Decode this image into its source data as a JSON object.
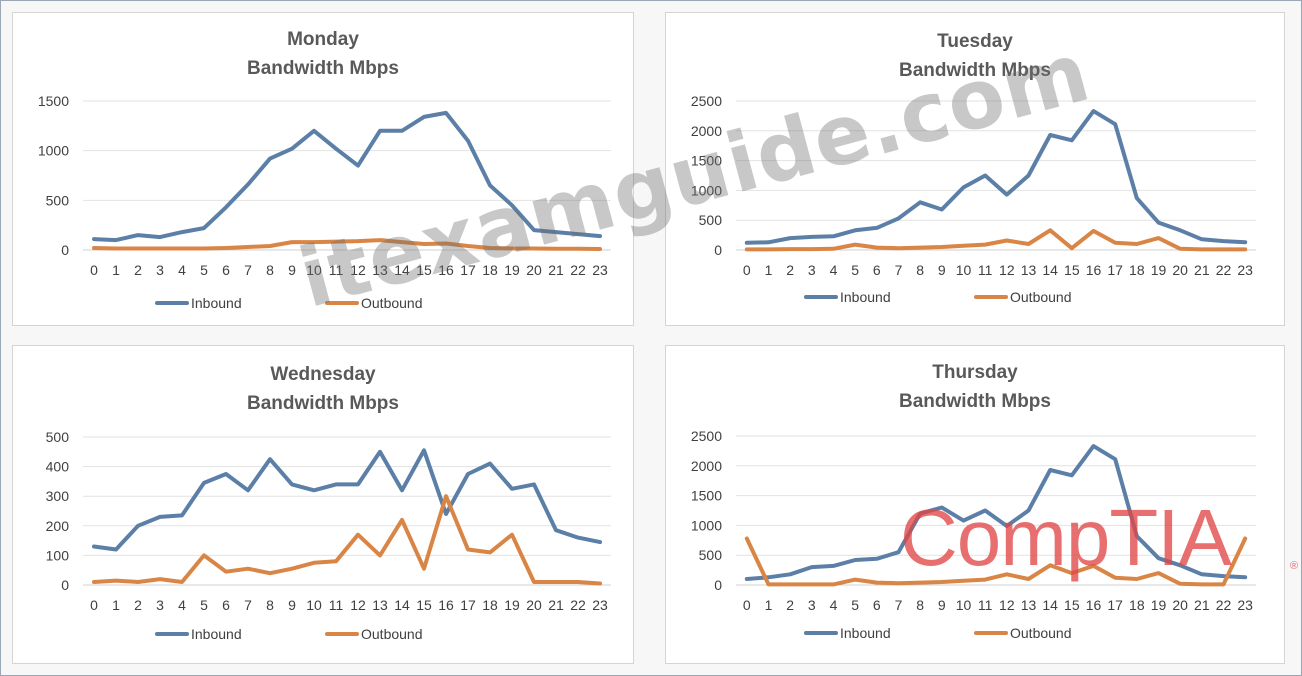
{
  "watermark_text": "itexamguide.com",
  "logo_text": "CompTIA",
  "logo_mark": "®",
  "chart_data": [
    {
      "type": "line",
      "title": [
        "Monday",
        "Bandwidth Mbps"
      ],
      "x": [
        0,
        1,
        2,
        3,
        4,
        5,
        6,
        7,
        8,
        9,
        10,
        11,
        12,
        13,
        14,
        15,
        16,
        17,
        18,
        19,
        20,
        21,
        22,
        23
      ],
      "y_ticks": [
        0,
        500,
        1000,
        1500
      ],
      "ylim": [
        0,
        1500
      ],
      "grid": true,
      "legend_position": "bottom",
      "series": [
        {
          "name": "Inbound",
          "color": "#5b7fa6",
          "values": [
            110,
            100,
            150,
            130,
            180,
            220,
            430,
            660,
            920,
            1020,
            1200,
            1020,
            850,
            1200,
            1200,
            1340,
            1380,
            1100,
            650,
            450,
            200,
            180,
            160,
            140
          ]
        },
        {
          "name": "Outbound",
          "color": "#d98545",
          "values": [
            20,
            15,
            15,
            15,
            15,
            15,
            20,
            30,
            40,
            80,
            80,
            85,
            90,
            100,
            80,
            60,
            65,
            40,
            20,
            15,
            15,
            12,
            12,
            10
          ]
        }
      ]
    },
    {
      "type": "line",
      "title": [
        "Tuesday",
        "Bandwidth Mbps"
      ],
      "x": [
        0,
        1,
        2,
        3,
        4,
        5,
        6,
        7,
        8,
        9,
        10,
        11,
        12,
        13,
        14,
        15,
        16,
        17,
        18,
        19,
        20,
        21,
        22,
        23
      ],
      "y_ticks": [
        0,
        500,
        1000,
        1500,
        2000,
        2500
      ],
      "ylim": [
        0,
        2500
      ],
      "grid": true,
      "legend_position": "bottom",
      "series": [
        {
          "name": "Inbound",
          "color": "#5b7fa6",
          "values": [
            120,
            130,
            200,
            220,
            230,
            330,
            370,
            530,
            800,
            680,
            1050,
            1250,
            930,
            1250,
            1930,
            1840,
            2330,
            2110,
            870,
            460,
            330,
            180,
            150,
            130
          ]
        },
        {
          "name": "Outbound",
          "color": "#d98545",
          "values": [
            10,
            10,
            15,
            15,
            20,
            90,
            40,
            30,
            40,
            50,
            70,
            90,
            160,
            100,
            330,
            30,
            320,
            120,
            100,
            200,
            20,
            10,
            10,
            10
          ]
        }
      ]
    },
    {
      "type": "line",
      "title": [
        "Wednesday",
        "Bandwidth Mbps"
      ],
      "x": [
        0,
        1,
        2,
        3,
        4,
        5,
        6,
        7,
        8,
        9,
        10,
        11,
        12,
        13,
        14,
        15,
        16,
        17,
        18,
        19,
        20,
        21,
        22,
        23
      ],
      "y_ticks": [
        0,
        100,
        200,
        300,
        400,
        500
      ],
      "ylim": [
        0,
        500
      ],
      "grid": true,
      "legend_position": "bottom",
      "series": [
        {
          "name": "Inbound",
          "color": "#5b7fa6",
          "values": [
            130,
            120,
            200,
            230,
            235,
            345,
            375,
            320,
            425,
            340,
            320,
            340,
            340,
            450,
            320,
            455,
            240,
            375,
            410,
            325,
            340,
            185,
            160,
            145
          ]
        },
        {
          "name": "Outbound",
          "color": "#d98545",
          "values": [
            10,
            15,
            10,
            20,
            10,
            100,
            45,
            55,
            40,
            55,
            75,
            80,
            170,
            100,
            220,
            55,
            300,
            120,
            110,
            170,
            10,
            10,
            10,
            5
          ]
        }
      ]
    },
    {
      "type": "line",
      "title": [
        "Thursday",
        "Bandwidth Mbps"
      ],
      "x": [
        0,
        1,
        2,
        3,
        4,
        5,
        6,
        7,
        8,
        9,
        10,
        11,
        12,
        13,
        14,
        15,
        16,
        17,
        18,
        19,
        20,
        21,
        22,
        23
      ],
      "y_ticks": [
        0,
        500,
        1000,
        1500,
        2000,
        2500
      ],
      "ylim": [
        0,
        2500
      ],
      "grid": true,
      "legend_position": "bottom",
      "series": [
        {
          "name": "Inbound",
          "color": "#5b7fa6",
          "values": [
            100,
            130,
            180,
            300,
            320,
            420,
            440,
            550,
            1200,
            1300,
            1080,
            1250,
            990,
            1250,
            1930,
            1840,
            2330,
            2110,
            820,
            450,
            330,
            180,
            150,
            130
          ]
        },
        {
          "name": "Outbound",
          "color": "#d98545",
          "values": [
            780,
            10,
            10,
            10,
            10,
            90,
            40,
            30,
            40,
            50,
            70,
            90,
            180,
            100,
            330,
            200,
            320,
            120,
            100,
            200,
            20,
            10,
            10,
            780
          ]
        }
      ]
    }
  ]
}
